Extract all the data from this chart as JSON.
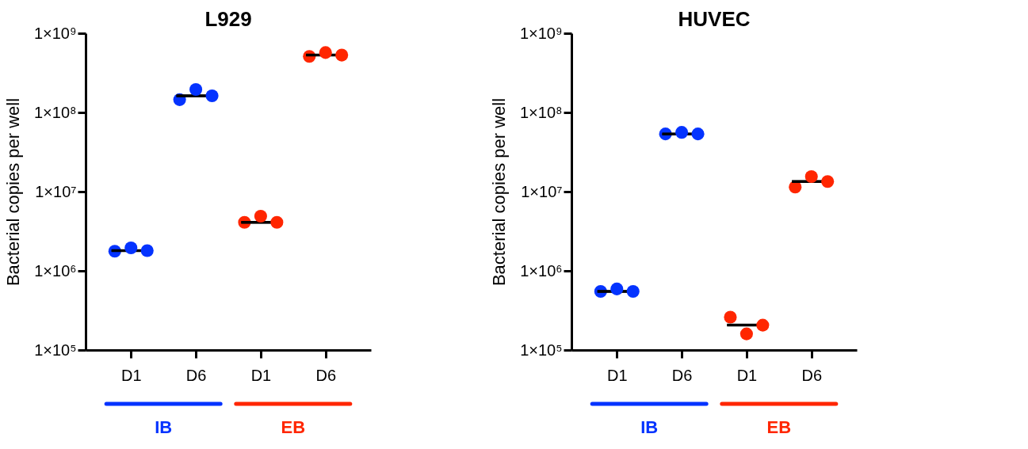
{
  "chart_data": [
    {
      "type": "scatter",
      "title": "L929",
      "ylabel": "Bacterial copies per well",
      "categories": [
        "D1",
        "D6",
        "D1",
        "D6"
      ],
      "log": "y",
      "ylim": [
        100000,
        1000000000
      ],
      "yticks": [
        {
          "value": 100000,
          "label": "1×10⁵"
        },
        {
          "value": 1000000,
          "label": "1×10⁶"
        },
        {
          "value": 10000000,
          "label": "1×10⁷"
        },
        {
          "value": 100000000,
          "label": "1×10⁸"
        },
        {
          "value": 1000000000,
          "label": "1×10⁹"
        }
      ],
      "grid": false,
      "marker": "circle",
      "annotations": [
        "IB",
        "EB"
      ],
      "series": [
        {
          "colors": [
            "#0433ff",
            "#0433ff",
            "#ff2600",
            "#ff2600"
          ],
          "values": [
            1770000,
            145000000,
            4100000,
            510000000
          ]
        },
        {
          "colors": [
            "#0433ff",
            "#0433ff",
            "#ff2600",
            "#ff2600"
          ],
          "values": [
            1950000,
            195000000,
            4900000,
            570000000
          ]
        },
        {
          "colors": [
            "#0433ff",
            "#0433ff",
            "#ff2600",
            "#ff2600"
          ],
          "values": [
            1800000,
            162000000,
            4100000,
            530000000
          ]
        },
        {
          "type": "box",
          "color": "#000000",
          "boxes": [
            {
              "low": 1800000,
              "q1": 1800000,
              "median": 1800000,
              "q3": 1800000,
              "high": 1800000
            },
            {
              "low": 162000000,
              "q1": 162000000,
              "median": 162000000,
              "q3": 162000000,
              "high": 162000000
            },
            {
              "low": 4100000,
              "q1": 4100000,
              "median": 4100000,
              "q3": 4100000,
              "high": 4100000
            },
            {
              "low": 530000000,
              "q1": 530000000,
              "median": 530000000,
              "q3": 530000000,
              "high": 530000000
            }
          ]
        }
      ]
    },
    {
      "type": "scatter",
      "title": "HUVEC",
      "ylabel": "Bacterial copies per well",
      "categories": [
        "D1",
        "D6",
        "D1",
        "D6"
      ],
      "log": "y",
      "ylim": [
        100000,
        1000000000
      ],
      "yticks": [
        {
          "value": 100000,
          "label": "1×10⁵"
        },
        {
          "value": 1000000,
          "label": "1×10⁶"
        },
        {
          "value": 10000000,
          "label": "1×10⁷"
        },
        {
          "value": 100000000,
          "label": "1×10⁸"
        },
        {
          "value": 1000000000,
          "label": "1×10⁹"
        }
      ],
      "grid": false,
      "marker": "circle",
      "annotations": [
        "IB",
        "EB"
      ],
      "series": [
        {
          "colors": [
            "#0433ff",
            "#0433ff",
            "#ff2600",
            "#ff2600"
          ],
          "values": [
            550000,
            53500000,
            260000,
            11400000
          ]
        },
        {
          "colors": [
            "#0433ff",
            "#0433ff",
            "#ff2600",
            "#ff2600"
          ],
          "values": [
            590000,
            56000000,
            160000,
            15500000
          ]
        },
        {
          "colors": [
            "#0433ff",
            "#0433ff",
            "#ff2600",
            "#ff2600"
          ],
          "values": [
            550000,
            53500000,
            206000,
            13400000
          ]
        },
        {
          "type": "box",
          "color": "#000000",
          "boxes": [
            {
              "low": 550000,
              "q1": 550000,
              "median": 550000,
              "q3": 550000,
              "high": 550000
            },
            {
              "low": 53500000,
              "q1": 53500000,
              "median": 53500000,
              "q3": 53500000,
              "high": 53500000
            },
            {
              "low": 206000,
              "q1": 206000,
              "median": 206000,
              "q3": 206000,
              "high": 206000
            },
            {
              "low": 13400000,
              "q1": 13400000,
              "median": 13400000,
              "q3": 13400000,
              "high": 13400000
            }
          ]
        }
      ]
    }
  ]
}
